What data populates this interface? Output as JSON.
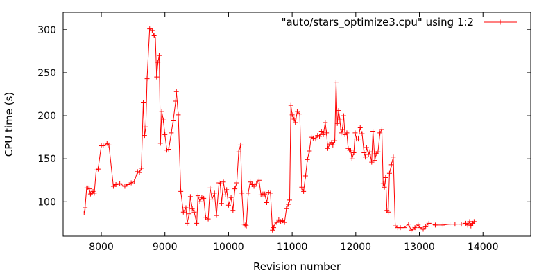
{
  "chart_data": {
    "type": "line",
    "title": "",
    "xlabel": "Revision number",
    "ylabel": "CPU time (s)",
    "xlim": [
      7400,
      14750
    ],
    "ylim": [
      60,
      320
    ],
    "xticks": [
      8000,
      9000,
      10000,
      11000,
      12000,
      13000,
      14000
    ],
    "yticks": [
      100,
      150,
      200,
      250,
      300
    ],
    "grid": false,
    "legend_position": "top-right",
    "marker": "plus",
    "series": [
      {
        "name": "\"auto/stars_optimize3.cpu\" using 1:2",
        "color": "#ff0000",
        "points": [
          [
            7730,
            87
          ],
          [
            7745,
            93
          ],
          [
            7770,
            116
          ],
          [
            7790,
            116
          ],
          [
            7810,
            115
          ],
          [
            7830,
            109
          ],
          [
            7850,
            110
          ],
          [
            7870,
            112
          ],
          [
            7890,
            110
          ],
          [
            7920,
            137
          ],
          [
            7950,
            138
          ],
          [
            8000,
            165
          ],
          [
            8030,
            165
          ],
          [
            8060,
            166
          ],
          [
            8090,
            168
          ],
          [
            8120,
            166
          ],
          [
            8190,
            118
          ],
          [
            8230,
            120
          ],
          [
            8290,
            121
          ],
          [
            8370,
            118
          ],
          [
            8420,
            120
          ],
          [
            8470,
            122
          ],
          [
            8520,
            124
          ],
          [
            8570,
            135
          ],
          [
            8600,
            134
          ],
          [
            8630,
            139
          ],
          [
            8660,
            215
          ],
          [
            8680,
            177
          ],
          [
            8700,
            187
          ],
          [
            8720,
            243
          ],
          [
            8760,
            301
          ],
          [
            8800,
            299
          ],
          [
            8830,
            293
          ],
          [
            8850,
            289
          ],
          [
            8870,
            245
          ],
          [
            8890,
            262
          ],
          [
            8910,
            270
          ],
          [
            8930,
            168
          ],
          [
            8950,
            205
          ],
          [
            8975,
            195
          ],
          [
            9000,
            178
          ],
          [
            9030,
            160
          ],
          [
            9060,
            161
          ],
          [
            9100,
            180
          ],
          [
            9130,
            194
          ],
          [
            9170,
            217
          ],
          [
            9180,
            228
          ],
          [
            9210,
            201
          ],
          [
            9250,
            112
          ],
          [
            9290,
            88
          ],
          [
            9330,
            93
          ],
          [
            9350,
            75
          ],
          [
            9380,
            86
          ],
          [
            9400,
            106
          ],
          [
            9430,
            92
          ],
          [
            9460,
            88
          ],
          [
            9500,
            75
          ],
          [
            9520,
            107
          ],
          [
            9550,
            100
          ],
          [
            9580,
            105
          ],
          [
            9610,
            104
          ],
          [
            9640,
            82
          ],
          [
            9680,
            80
          ],
          [
            9710,
            116
          ],
          [
            9740,
            103
          ],
          [
            9780,
            110
          ],
          [
            9810,
            84
          ],
          [
            9850,
            122
          ],
          [
            9870,
            121
          ],
          [
            9890,
            98
          ],
          [
            9920,
            123
          ],
          [
            9950,
            108
          ],
          [
            9970,
            114
          ],
          [
            10000,
            96
          ],
          [
            10040,
            105
          ],
          [
            10070,
            90
          ],
          [
            10100,
            115
          ],
          [
            10130,
            122
          ],
          [
            10160,
            158
          ],
          [
            10190,
            166
          ],
          [
            10210,
            110
          ],
          [
            10240,
            74
          ],
          [
            10260,
            73
          ],
          [
            10280,
            72
          ],
          [
            10310,
            110
          ],
          [
            10340,
            123
          ],
          [
            10370,
            120
          ],
          [
            10400,
            118
          ],
          [
            10440,
            121
          ],
          [
            10480,
            125
          ],
          [
            10510,
            108
          ],
          [
            10540,
            109
          ],
          [
            10570,
            109
          ],
          [
            10600,
            99
          ],
          [
            10630,
            111
          ],
          [
            10660,
            110
          ],
          [
            10690,
            67
          ],
          [
            10710,
            70
          ],
          [
            10730,
            74
          ],
          [
            10760,
            76
          ],
          [
            10790,
            79
          ],
          [
            10820,
            77
          ],
          [
            10850,
            78
          ],
          [
            10880,
            76
          ],
          [
            10910,
            92
          ],
          [
            10940,
            97
          ],
          [
            10960,
            102
          ],
          [
            10980,
            212
          ],
          [
            11000,
            201
          ],
          [
            11030,
            196
          ],
          [
            11050,
            192
          ],
          [
            11080,
            205
          ],
          [
            11120,
            202
          ],
          [
            11150,
            117
          ],
          [
            11180,
            112
          ],
          [
            11210,
            130
          ],
          [
            11240,
            149
          ],
          [
            11270,
            159
          ],
          [
            11300,
            175
          ],
          [
            11330,
            174
          ],
          [
            11370,
            173
          ],
          [
            11400,
            177
          ],
          [
            11430,
            176
          ],
          [
            11460,
            182
          ],
          [
            11490,
            178
          ],
          [
            11520,
            192
          ],
          [
            11540,
            180
          ],
          [
            11560,
            162
          ],
          [
            11590,
            167
          ],
          [
            11620,
            169
          ],
          [
            11640,
            166
          ],
          [
            11670,
            171
          ],
          [
            11690,
            239
          ],
          [
            11710,
            191
          ],
          [
            11730,
            206
          ],
          [
            11750,
            195
          ],
          [
            11770,
            180
          ],
          [
            11790,
            184
          ],
          [
            11810,
            200
          ],
          [
            11830,
            178
          ],
          [
            11860,
            180
          ],
          [
            11880,
            162
          ],
          [
            11900,
            160
          ],
          [
            11920,
            160
          ],
          [
            11940,
            150
          ],
          [
            11970,
            157
          ],
          [
            11990,
            180
          ],
          [
            12010,
            173
          ],
          [
            12040,
            173
          ],
          [
            12070,
            186
          ],
          [
            12100,
            179
          ],
          [
            12130,
            157
          ],
          [
            12150,
            152
          ],
          [
            12170,
            163
          ],
          [
            12200,
            155
          ],
          [
            12220,
            158
          ],
          [
            12250,
            146
          ],
          [
            12270,
            182
          ],
          [
            12300,
            148
          ],
          [
            12320,
            156
          ],
          [
            12350,
            158
          ],
          [
            12380,
            180
          ],
          [
            12410,
            184
          ],
          [
            12430,
            121
          ],
          [
            12450,
            117
          ],
          [
            12470,
            128
          ],
          [
            12490,
            90
          ],
          [
            12510,
            88
          ],
          [
            12530,
            133
          ],
          [
            12560,
            143
          ],
          [
            12590,
            152
          ],
          [
            12620,
            72
          ],
          [
            12660,
            70
          ],
          [
            12700,
            70
          ],
          [
            12760,
            70
          ],
          [
            12830,
            74
          ],
          [
            12870,
            67
          ],
          [
            12900,
            68
          ],
          [
            12930,
            70
          ],
          [
            12980,
            73
          ],
          [
            13010,
            70
          ],
          [
            13060,
            68
          ],
          [
            13100,
            71
          ],
          [
            13150,
            75
          ],
          [
            13250,
            73
          ],
          [
            13370,
            73
          ],
          [
            13480,
            74
          ],
          [
            13560,
            74
          ],
          [
            13660,
            74
          ],
          [
            13720,
            75
          ],
          [
            13760,
            73
          ],
          [
            13790,
            77
          ],
          [
            13810,
            72
          ],
          [
            13840,
            75
          ],
          [
            13860,
            77
          ]
        ]
      }
    ]
  }
}
